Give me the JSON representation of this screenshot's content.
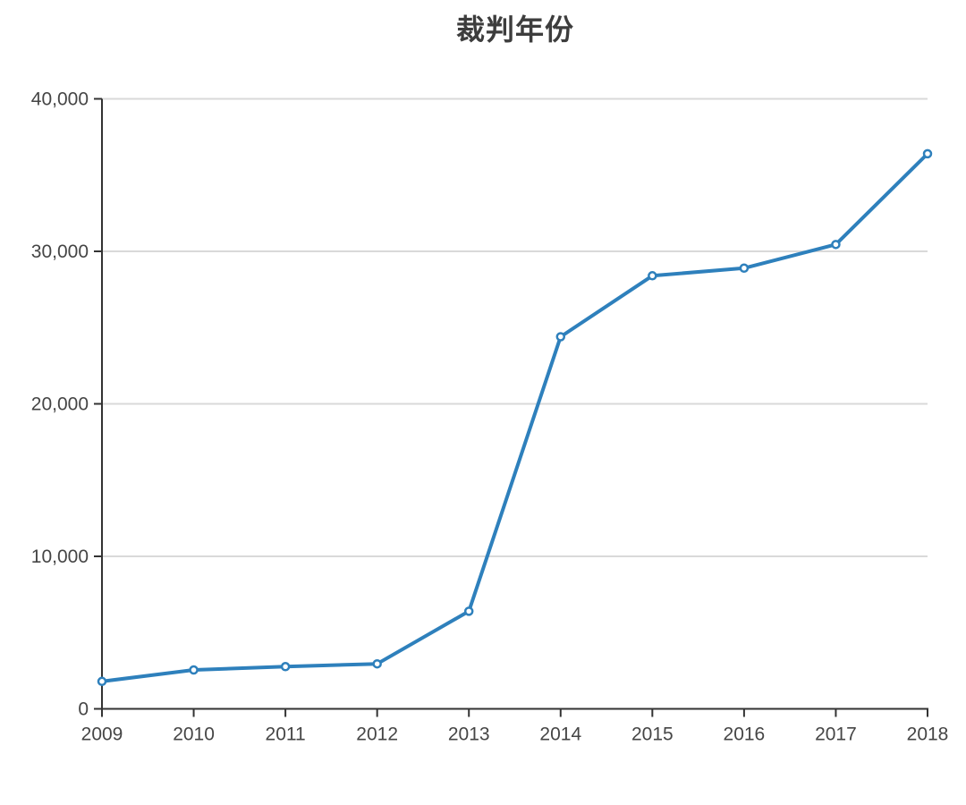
{
  "chart_data": {
    "type": "line",
    "title": "裁判年份",
    "x": [
      2009,
      2010,
      2011,
      2012,
      2013,
      2014,
      2015,
      2016,
      2017,
      2018
    ],
    "series": [
      {
        "name": "裁判年份",
        "values": [
          1800,
          2550,
          2770,
          2950,
          6400,
          24400,
          28400,
          28900,
          30450,
          36400
        ]
      }
    ],
    "xlabel": "",
    "ylabel": "",
    "ylim": [
      0,
      40000
    ],
    "yticks": [
      0,
      10000,
      20000,
      30000,
      40000
    ],
    "ytick_labels": [
      "0",
      "10,000",
      "20,000",
      "30,000",
      "40,000"
    ],
    "grid": true,
    "legend_position": "none",
    "colors": {
      "line": "#2e80bc",
      "marker_fill": "#ffffff",
      "grid": "#d9d9d9",
      "axis": "#333333",
      "tick_label": "#454545",
      "title": "#3d3d3d"
    }
  }
}
